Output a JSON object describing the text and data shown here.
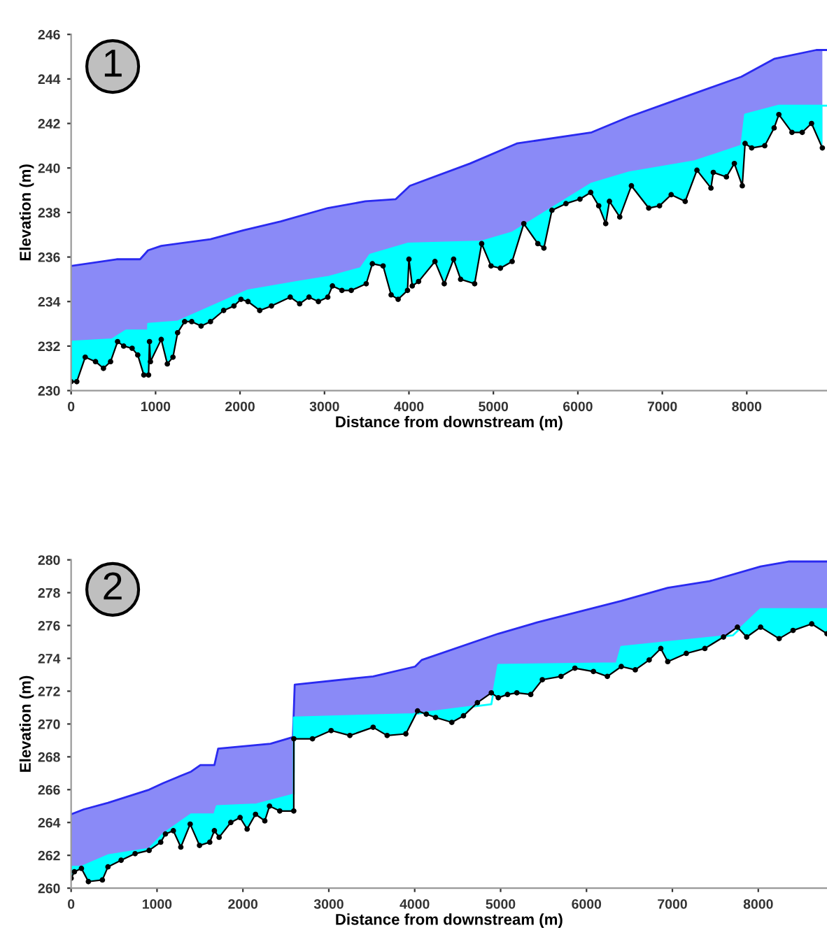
{
  "chart_data": [
    {
      "type": "area",
      "xlabel": "Distance from downstream (m)",
      "ylabel": "Elevation (m)",
      "annotations": [
        "1"
      ],
      "xlim": [
        0,
        8950
      ],
      "ylim": [
        230,
        246
      ],
      "xticks": [
        0,
        1000,
        2000,
        3000,
        4000,
        5000,
        6000,
        7000,
        8000
      ],
      "yticks": [
        230,
        232,
        234,
        236,
        238,
        240,
        242,
        244,
        246
      ],
      "grid": false,
      "legend": false,
      "series": [
        {
          "color": "#2a2af0",
          "x": [
            0,
            539,
            817,
            911,
            1067,
            1650,
            2039,
            2483,
            3039,
            3483,
            3844,
            4011,
            4723,
            5277,
            6163,
            6607,
            7050,
            7936,
            8324,
            8823,
            8950
          ],
          "values": [
            235.6,
            235.9,
            235.9,
            236.3,
            236.5,
            236.8,
            237.2,
            237.6,
            238.2,
            238.5,
            238.6,
            239.2,
            240.2,
            241.1,
            241.6,
            242.3,
            242.9,
            244.1,
            244.9,
            245.3,
            245.3
          ]
        },
        {
          "color": "#00ffff",
          "x": [
            0,
            483,
            650,
            911,
            912,
            1261,
            2094,
            2706,
            3039,
            3428,
            3539,
            3983,
            4861,
            5222,
            5693,
            6163,
            6607,
            7382,
            7936,
            7980,
            8380,
            8950
          ],
          "values": [
            232.2,
            232.3,
            232.7,
            232.7,
            233.0,
            233.1,
            234.5,
            234.9,
            235.1,
            235.5,
            236.1,
            236.6,
            236.7,
            237.1,
            238.2,
            239.3,
            239.8,
            240.3,
            241.0,
            242.4,
            242.8,
            242.8
          ]
        },
        {
          "type": "line",
          "color": "#000000",
          "marker": "circle",
          "x": [
            0,
            67,
            167,
            289,
            383,
            467,
            550,
            622,
            722,
            789,
            861,
            917,
            928,
            939,
            1067,
            1139,
            1206,
            1261,
            1344,
            1428,
            1539,
            1650,
            1806,
            1928,
            2011,
            2094,
            2233,
            2372,
            2594,
            2706,
            2817,
            2928,
            3039,
            3094,
            3206,
            3317,
            3494,
            3567,
            3694,
            3789,
            3872,
            3983,
            4000,
            4039,
            4114,
            4308,
            4418,
            4529,
            4612,
            4778,
            4861,
            4972,
            5083,
            5222,
            5360,
            5526,
            5598,
            5693,
            5859,
            6025,
            6152,
            6247,
            6330,
            6374,
            6496,
            6634,
            6839,
            6967,
            7105,
            7271,
            7410,
            7576,
            7604,
            7759,
            7853,
            7947,
            7980,
            8058,
            8213,
            8324,
            8380,
            8535,
            8657,
            8767,
            8895
          ],
          "values": [
            230.4,
            230.4,
            231.5,
            231.3,
            231.0,
            231.3,
            232.2,
            232.0,
            231.9,
            231.6,
            230.7,
            230.7,
            232.2,
            231.3,
            232.3,
            231.2,
            231.5,
            232.6,
            233.1,
            233.1,
            232.9,
            233.1,
            233.6,
            233.8,
            234.1,
            234.0,
            233.6,
            233.8,
            234.2,
            233.9,
            234.2,
            234.0,
            234.2,
            234.7,
            234.5,
            234.5,
            234.8,
            235.7,
            235.6,
            234.3,
            234.1,
            234.5,
            235.9,
            234.7,
            234.9,
            235.8,
            234.8,
            235.9,
            235.0,
            234.8,
            236.6,
            235.6,
            235.5,
            235.8,
            237.5,
            236.6,
            236.4,
            238.1,
            238.4,
            238.6,
            238.9,
            238.3,
            237.5,
            238.5,
            237.8,
            239.2,
            238.2,
            238.3,
            238.8,
            238.5,
            239.9,
            239.1,
            239.8,
            239.6,
            240.2,
            239.2,
            241.1,
            240.9,
            241.0,
            241.8,
            242.4,
            241.6,
            241.6,
            242.0,
            240.9
          ]
        }
      ]
    },
    {
      "type": "area",
      "xlabel": "Distance from downstream (m)",
      "ylabel": "Elevation (m)",
      "annotations": [
        "2"
      ],
      "xlim": [
        0,
        8800
      ],
      "ylim": [
        260,
        280
      ],
      "xticks": [
        0,
        1000,
        2000,
        3000,
        4000,
        5000,
        6000,
        7000,
        8000
      ],
      "yticks": [
        260,
        262,
        264,
        266,
        268,
        270,
        272,
        274,
        276,
        278,
        280
      ],
      "grid": false,
      "legend": false,
      "series": [
        {
          "color": "#2a2af0",
          "x": [
            0,
            147,
            429,
            908,
            1071,
            1397,
            1505,
            1668,
            1712,
            2321,
            2582,
            2603,
            3516,
            4005,
            4081,
            4973,
            5432,
            6405,
            6946,
            7432,
            8027,
            8351,
            8800
          ],
          "values": [
            264.5,
            264.8,
            265.2,
            266.0,
            266.4,
            267.1,
            267.5,
            267.5,
            268.5,
            268.8,
            269.2,
            272.4,
            272.9,
            273.5,
            273.9,
            275.5,
            276.2,
            277.5,
            278.3,
            278.7,
            279.6,
            279.9,
            279.9
          ]
        },
        {
          "color": "#00ffff",
          "x": [
            0,
            120,
            429,
            908,
            1071,
            1397,
            1668,
            1696,
            2158,
            2592,
            2593,
            3978,
            4892,
            4973,
            6351,
            6405,
            7703,
            8027,
            8800
          ],
          "values": [
            261.3,
            261.3,
            262.0,
            262.4,
            263.3,
            264.5,
            264.5,
            265.0,
            265.1,
            265.7,
            270.4,
            270.6,
            271.2,
            273.6,
            273.7,
            274.7,
            275.4,
            277.0,
            277.0
          ]
        },
        {
          "type": "line",
          "color": "#000000",
          "marker": "circle",
          "x": [
            0,
            38,
            120,
            201,
            364,
            429,
            582,
            745,
            908,
            1043,
            1098,
            1190,
            1277,
            1386,
            1495,
            1614,
            1668,
            1723,
            1859,
            1967,
            2049,
            2147,
            2255,
            2310,
            2429,
            2592,
            2593,
            2810,
            3027,
            3245,
            3516,
            3679,
            3897,
            4033,
            4135,
            4243,
            4432,
            4568,
            4730,
            4892,
            4973,
            5081,
            5189,
            5351,
            5486,
            5703,
            5865,
            6081,
            6243,
            6405,
            6568,
            6730,
            6865,
            6946,
            7162,
            7378,
            7595,
            7757,
            7865,
            8027,
            8243,
            8405,
            8622,
            8800
          ],
          "values": [
            260.6,
            261.0,
            261.2,
            260.4,
            260.5,
            261.3,
            261.7,
            262.1,
            262.3,
            262.8,
            263.3,
            263.5,
            262.5,
            263.9,
            262.6,
            262.8,
            263.5,
            263.1,
            264.0,
            264.3,
            263.6,
            264.5,
            264.1,
            265.0,
            264.7,
            264.7,
            269.1,
            269.1,
            269.6,
            269.3,
            269.8,
            269.3,
            269.4,
            270.8,
            270.6,
            270.4,
            270.1,
            270.5,
            271.3,
            271.9,
            271.6,
            271.8,
            271.9,
            271.8,
            272.7,
            272.9,
            273.4,
            273.2,
            272.9,
            273.5,
            273.3,
            273.9,
            274.6,
            273.8,
            274.3,
            274.6,
            275.3,
            275.9,
            275.3,
            275.9,
            275.2,
            275.7,
            276.1,
            275.5
          ]
        }
      ]
    }
  ]
}
